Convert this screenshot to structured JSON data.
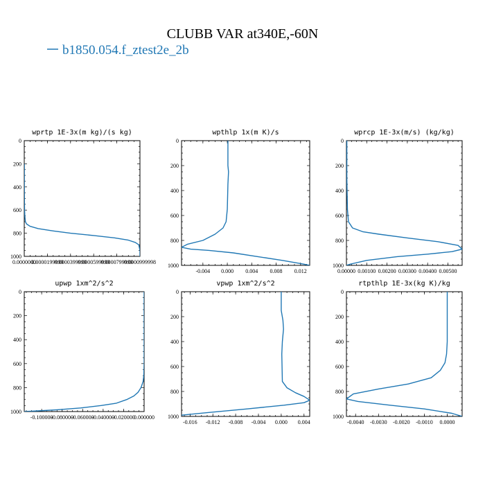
{
  "figure": {
    "title": "CLUBB VAR at340E,-60N",
    "legend": {
      "label": "b1850.054.f_ztest2e_2b",
      "color": "#1f77b4",
      "position": "top-left"
    }
  },
  "chart_data": [
    {
      "type": "line",
      "title": "wprtp  1E-3x(m kg)/(s kg)",
      "xlim": [
        0.0,
        0.0001
      ],
      "ylim": [
        1000,
        0
      ],
      "yticks": [
        0,
        200,
        400,
        600,
        800,
        1000
      ],
      "xticks": [
        0.0,
        1.99999e-05,
        3.99999e-05,
        5.99999e-05,
        7.99999e-05,
        9.99998e-05
      ],
      "xtick_labels": [
        "0.0000000",
        "0.0000199999",
        "0.0000399999",
        "0.0000599999",
        "0.0000799999",
        "0.0000999998"
      ],
      "series": [
        {
          "color": "#1f77b4",
          "x": [
            1e-07,
            1e-07,
            2e-07,
            3e-07,
            5e-07,
            1e-06,
            2e-06,
            5e-06,
            1.2e-05,
            2.5e-05,
            4e-05,
            6e-05,
            7.8e-05,
            9e-05,
            9.6e-05,
            9.9e-05,
            0.0001,
            0.0001
          ],
          "y": [
            200,
            400,
            550,
            600,
            650,
            700,
            720,
            740,
            760,
            780,
            800,
            820,
            840,
            860,
            880,
            900,
            950,
            1000
          ]
        }
      ]
    },
    {
      "type": "line",
      "title": "wpthlp  1x(m K)/s",
      "xlim": [
        -0.0075,
        0.0135
      ],
      "ylim": [
        1000,
        0
      ],
      "yticks": [
        0,
        200,
        400,
        600,
        800,
        1000
      ],
      "xticks": [
        -0.004,
        0.0,
        0.004,
        0.008,
        0.012
      ],
      "xtick_labels": [
        "-0.004",
        "0.000",
        "0.004",
        "0.008",
        "0.012"
      ],
      "series": [
        {
          "color": "#1f77b4",
          "x": [
            0.0001,
            0.0001,
            0.0002,
            0.0001,
            0.0,
            -0.0002,
            -0.0007,
            -0.002,
            -0.004,
            -0.0065,
            -0.0075,
            -0.006,
            -0.003,
            0.001,
            0.005,
            0.009,
            0.0125,
            0.0135
          ],
          "y": [
            0,
            200,
            250,
            350,
            550,
            650,
            700,
            750,
            800,
            830,
            855,
            870,
            880,
            900,
            930,
            960,
            990,
            1000
          ]
        }
      ]
    },
    {
      "type": "line",
      "title": "wprcp  1E-3x(m/s) (kg/kg)",
      "xlim": [
        0.0,
        0.0057
      ],
      "ylim": [
        1000,
        0
      ],
      "yticks": [
        0,
        200,
        400,
        600,
        800,
        1000
      ],
      "xticks": [
        0.0,
        0.001,
        0.002,
        0.003,
        0.004,
        0.005
      ],
      "xtick_labels": [
        "0.00000",
        "0.00100",
        "0.00200",
        "0.00300",
        "0.00400",
        "0.00500"
      ],
      "series": [
        {
          "color": "#1f77b4",
          "x": [
            2e-05,
            2e-05,
            5e-05,
            0.0001,
            0.0003,
            0.0008,
            0.0016,
            0.003,
            0.0045,
            0.0055,
            0.0057,
            0.0052,
            0.004,
            0.0025,
            0.001,
            0.0002,
            0.0
          ],
          "y": [
            0,
            300,
            550,
            650,
            700,
            730,
            750,
            780,
            810,
            840,
            870,
            890,
            910,
            930,
            960,
            990,
            1000
          ]
        }
      ]
    },
    {
      "type": "line",
      "title": "upwp  1xm^2/s^2",
      "xlim": [
        -0.117,
        0.0
      ],
      "ylim": [
        1000,
        0
      ],
      "yticks": [
        0,
        200,
        400,
        600,
        800,
        1000
      ],
      "xticks": [
        -0.1,
        -0.08,
        -0.06,
        -0.04,
        -0.02,
        0.0
      ],
      "xtick_labels": [
        "-0.100000",
        "-0.080000",
        "-0.060000",
        "-0.040000",
        "-0.020000",
        "0.000000"
      ],
      "series": [
        {
          "color": "#1f77b4",
          "x": [
            0.0,
            0.0,
            -0.0003,
            -0.001,
            -0.003,
            -0.006,
            -0.01,
            -0.017,
            -0.027,
            -0.042,
            -0.062,
            -0.085,
            -0.105,
            -0.117
          ],
          "y": [
            0,
            600,
            700,
            750,
            800,
            840,
            870,
            900,
            930,
            950,
            970,
            985,
            995,
            1000
          ]
        }
      ]
    },
    {
      "type": "line",
      "title": "vpwp  1xm^2/s^2",
      "xlim": [
        -0.0175,
        0.005
      ],
      "ylim": [
        1000,
        0
      ],
      "yticks": [
        0,
        200,
        400,
        600,
        800,
        1000
      ],
      "xticks": [
        -0.016,
        -0.012,
        -0.008,
        -0.004,
        0.0,
        0.004
      ],
      "xtick_labels": [
        "-0.016",
        "-0.012",
        "-0.008",
        "-0.004",
        "0.000",
        "0.004"
      ],
      "series": [
        {
          "color": "#1f77b4",
          "x": [
            0.0,
            0.0,
            0.0003,
            0.0004,
            0.0002,
            0.0001,
            0.0002,
            0.001,
            0.0025,
            0.004,
            0.005,
            0.004,
            0.0005,
            -0.006,
            -0.013,
            -0.0175
          ],
          "y": [
            0,
            150,
            230,
            300,
            400,
            500,
            720,
            770,
            810,
            840,
            870,
            890,
            910,
            940,
            970,
            990
          ]
        }
      ]
    },
    {
      "type": "line",
      "title": "rtpthlp  1E-3x(kg K)/kg",
      "xlim": [
        -0.0044,
        0.00065
      ],
      "ylim": [
        1000,
        0
      ],
      "yticks": [
        0,
        200,
        400,
        600,
        800,
        1000
      ],
      "xticks": [
        -0.004,
        -0.003,
        -0.002,
        -0.001,
        0.0
      ],
      "xtick_labels": [
        "-0.0040",
        "-0.0030",
        "-0.0020",
        "-0.0010",
        "0.0000"
      ],
      "series": [
        {
          "color": "#1f77b4",
          "x": [
            0.0,
            0.0,
            -3e-05,
            -0.0001,
            -0.0003,
            -0.0007,
            -0.0017,
            -0.003,
            -0.0041,
            -0.0044,
            -0.0039,
            -0.0025,
            -0.001,
            0.0002,
            0.00065
          ],
          "y": [
            0,
            400,
            500,
            570,
            630,
            690,
            740,
            780,
            820,
            860,
            880,
            910,
            940,
            975,
            1000
          ]
        }
      ]
    }
  ]
}
